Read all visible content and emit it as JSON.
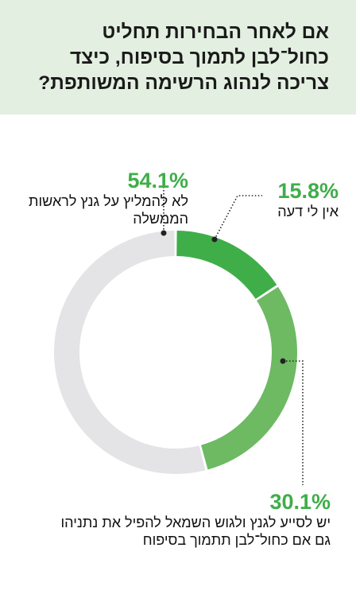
{
  "header": {
    "title": "אם לאחר הבחירות תחליט כחול־לבן לתמוך בסיפוח, כיצד צריכה לנהוג הרשימה המשותפת?"
  },
  "chart_data": {
    "type": "pie",
    "title": "אם לאחר הבחירות תחליט כחול־לבן לתמוך בסיפוח, כיצד צריכה לנהוג הרשימה המשותפת?",
    "slices": [
      {
        "label": "אין לי דעה",
        "value": 15.8,
        "value_text": "15.8%",
        "color": "#3fae49"
      },
      {
        "label": "יש לסייע לגנץ ולגוש השמאל להפיל את נתניהו גם אם כחול־לבן תתמוך בסיפוח",
        "value": 30.1,
        "value_text": "30.1%",
        "color": "#6dba63"
      },
      {
        "label": "לא להמליץ על גנץ לראשות הממשלה",
        "value": 54.1,
        "value_text": "54.1%",
        "color": "#e4e4e6"
      }
    ],
    "style": "donut",
    "label_colors": {
      "pct": "#3fae49"
    }
  }
}
